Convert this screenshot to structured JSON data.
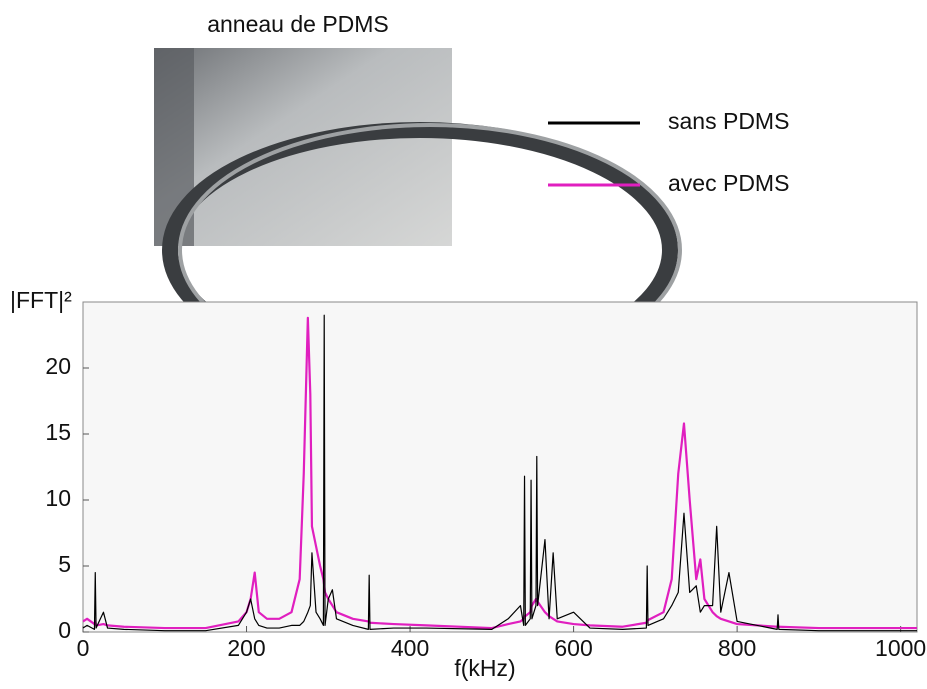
{
  "chart_data": {
    "type": "line",
    "image_caption": "anneau de PDMS",
    "ylabel": "|FFT|²",
    "xlabel": "f(kHz)",
    "xlim": [
      0,
      1020
    ],
    "ylim": [
      0,
      25
    ],
    "xticks": [
      0,
      200,
      400,
      600,
      800,
      1000
    ],
    "yticks": [
      0,
      5,
      10,
      15,
      20
    ],
    "grid": false,
    "legend": "upper right",
    "x": [
      0,
      5,
      14,
      15,
      16,
      25,
      30,
      50,
      100,
      150,
      190,
      200,
      205,
      210,
      215,
      225,
      240,
      255,
      265,
      270,
      275,
      278,
      280,
      285,
      290,
      294,
      295,
      296,
      300,
      305,
      310,
      330,
      349,
      350,
      351,
      380,
      420,
      500,
      520,
      535,
      539,
      540,
      541,
      547,
      548,
      549,
      554,
      555,
      556,
      565,
      570,
      575,
      580,
      600,
      620,
      660,
      689,
      690,
      691,
      710,
      720,
      728,
      735,
      742,
      750,
      755,
      760,
      770,
      775,
      780,
      790,
      800,
      849,
      850,
      851,
      900,
      1000,
      1020
    ],
    "series": [
      {
        "name": "sans PDMS",
        "color": "#000000",
        "values": [
          0.3,
          0.5,
          0.2,
          4.5,
          0.3,
          1.5,
          0.3,
          0.2,
          0.1,
          0.1,
          0.5,
          1.5,
          2.5,
          1.0,
          0.5,
          0.3,
          0.3,
          0.5,
          0.5,
          0.8,
          1.5,
          2,
          6,
          1.5,
          1.0,
          0.5,
          24,
          0.5,
          2.5,
          3.2,
          1,
          0.5,
          0.2,
          4.3,
          0.2,
          0.3,
          0.3,
          0.2,
          1,
          2,
          0.5,
          11.8,
          0.5,
          1,
          11.5,
          1,
          2,
          13.3,
          2,
          7,
          1,
          6,
          1,
          1.5,
          0.3,
          0.2,
          0.3,
          5,
          0.5,
          1,
          2,
          3,
          9,
          3,
          3.5,
          1.5,
          2,
          2,
          8,
          1.5,
          4.5,
          0.8,
          0.2,
          1.3,
          0.2,
          0.1,
          0.1,
          0.1
        ]
      },
      {
        "name": "avec PDMS",
        "color": "#e01fbf",
        "values": [
          0.8,
          1.0,
          0.6,
          0.8,
          0.5,
          0.6,
          0.5,
          0.4,
          0.3,
          0.3,
          0.8,
          1.5,
          2.5,
          4.5,
          1.5,
          1.0,
          1.0,
          1.5,
          4,
          12,
          23.8,
          18,
          8,
          6.5,
          5,
          4,
          3.5,
          3,
          2.5,
          2,
          1.5,
          1,
          0.8,
          0.8,
          0.7,
          0.6,
          0.5,
          0.3,
          0.6,
          0.8,
          1,
          1.2,
          1.2,
          1.5,
          1.8,
          2,
          2.5,
          2.5,
          2.3,
          1.5,
          1.2,
          1,
          0.8,
          0.6,
          0.5,
          0.4,
          0.7,
          0.8,
          0.9,
          1.5,
          4,
          12,
          15.8,
          10,
          4,
          5.5,
          2.5,
          1.5,
          1.2,
          1,
          0.8,
          0.6,
          0.4,
          0.4,
          0.4,
          0.3,
          0.3,
          0.3
        ]
      }
    ]
  }
}
